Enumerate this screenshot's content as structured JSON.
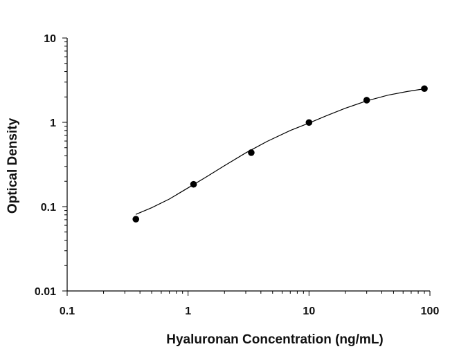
{
  "chart_data": {
    "type": "scatter",
    "title": "",
    "xlabel": "Hyaluronan Concentration (ng/mL)",
    "ylabel": "Optical Density",
    "x_scale": "log",
    "y_scale": "log",
    "xlim": [
      0.1,
      100
    ],
    "ylim": [
      0.01,
      10
    ],
    "x_tick_labels": [
      "0.1",
      "1",
      "10",
      "100"
    ],
    "y_tick_labels": [
      "0.01",
      "0.1",
      "1",
      "10"
    ],
    "grid": false,
    "legend": "none",
    "series": [
      {
        "x": [
          0.37,
          1.11,
          3.33,
          10,
          30,
          90
        ],
        "y": [
          0.071,
          0.184,
          0.437,
          0.995,
          1.83,
          2.51
        ],
        "color": "#000000"
      }
    ],
    "fit_curve": {
      "x": [
        0.37,
        0.5,
        0.7,
        1,
        1.4,
        2,
        3,
        4.5,
        7,
        10,
        14,
        20,
        30,
        45,
        65,
        90
      ],
      "y": [
        0.081,
        0.097,
        0.123,
        0.167,
        0.223,
        0.306,
        0.434,
        0.594,
        0.8,
        0.98,
        1.2,
        1.47,
        1.8,
        2.1,
        2.32,
        2.5
      ],
      "color": "#000000"
    }
  }
}
